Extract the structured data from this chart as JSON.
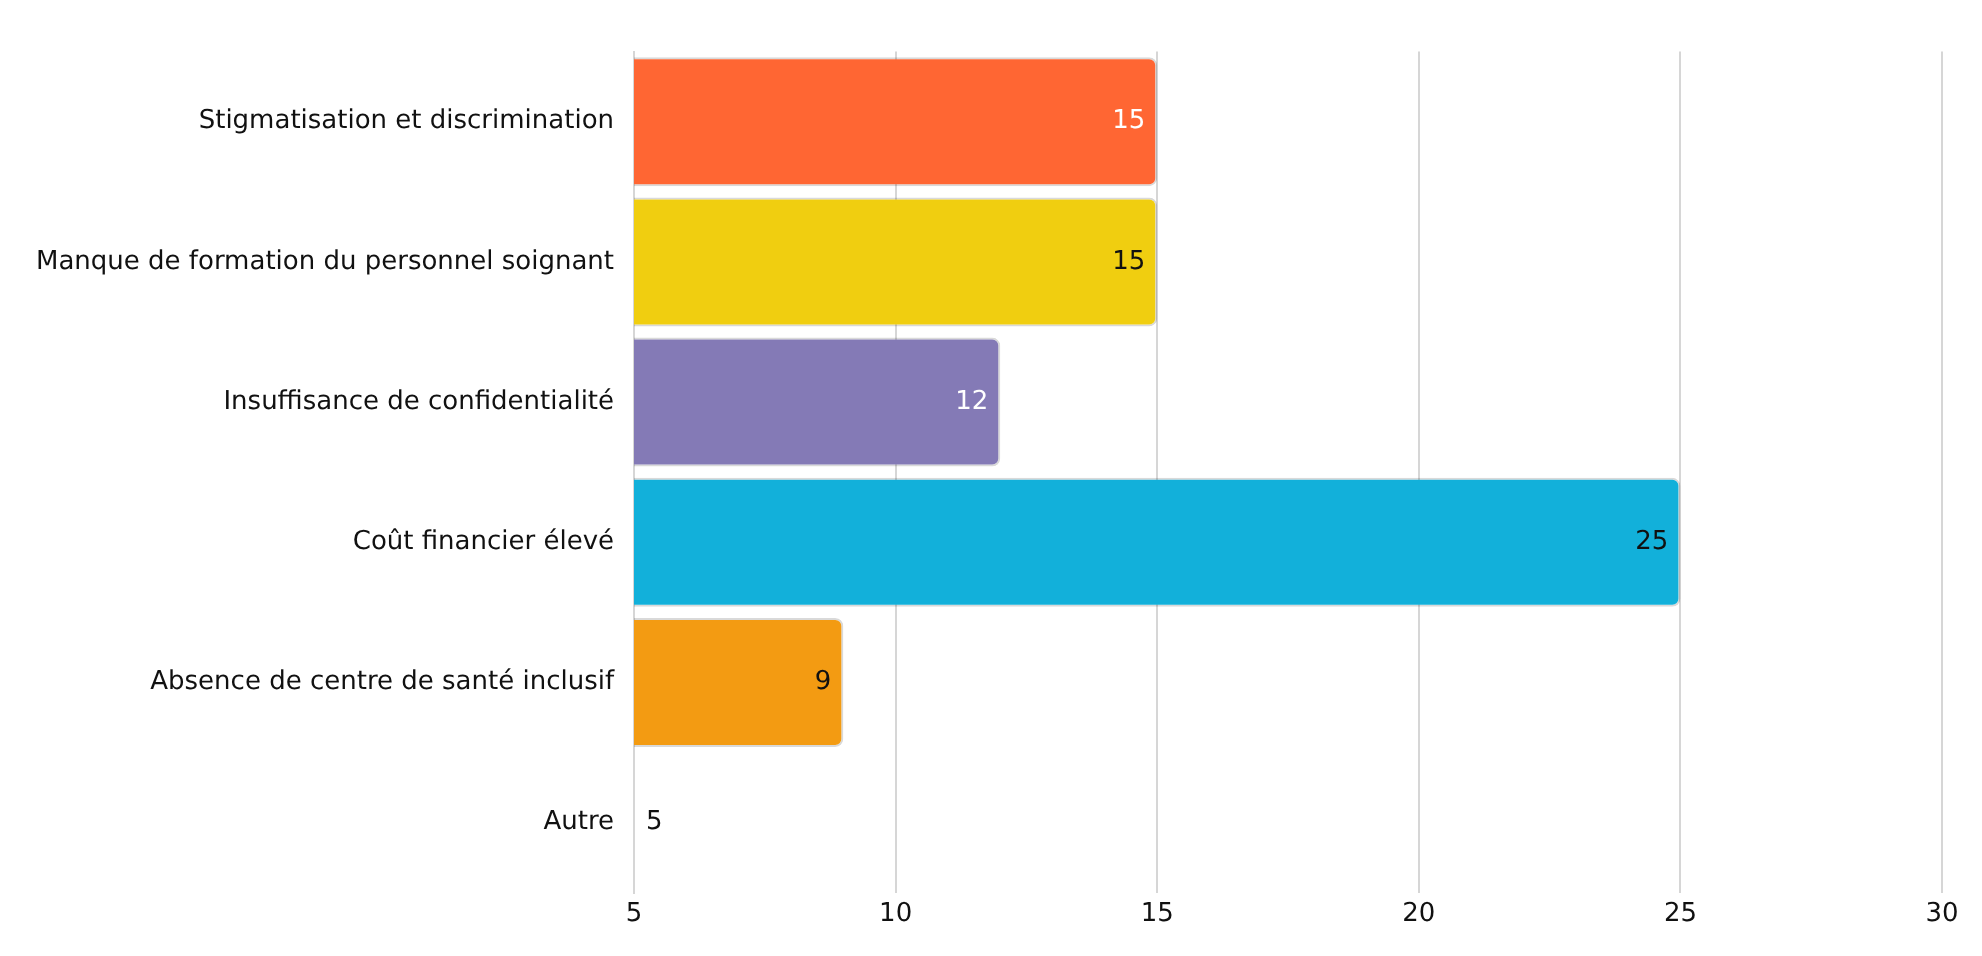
{
  "chart_data": {
    "type": "bar",
    "orientation": "horizontal",
    "categories": [
      "Stigmatisation et discrimination",
      "Manque de formation du personnel soignant",
      "Insuffisance de confidentialité",
      "Coût financier élevé",
      "Absence de centre de santé inclusif",
      "Autre"
    ],
    "values": [
      15,
      15,
      12,
      25,
      9,
      5
    ],
    "colors": [
      "#ff6633",
      "#f0ce10",
      "#847ab6",
      "#12b0da",
      "#f39b12",
      "#cccccc"
    ],
    "xlim": [
      5,
      30
    ],
    "xticks": [
      5,
      10,
      15,
      20,
      25,
      30
    ],
    "grid": "x",
    "data_labels": true,
    "legend": false
  }
}
